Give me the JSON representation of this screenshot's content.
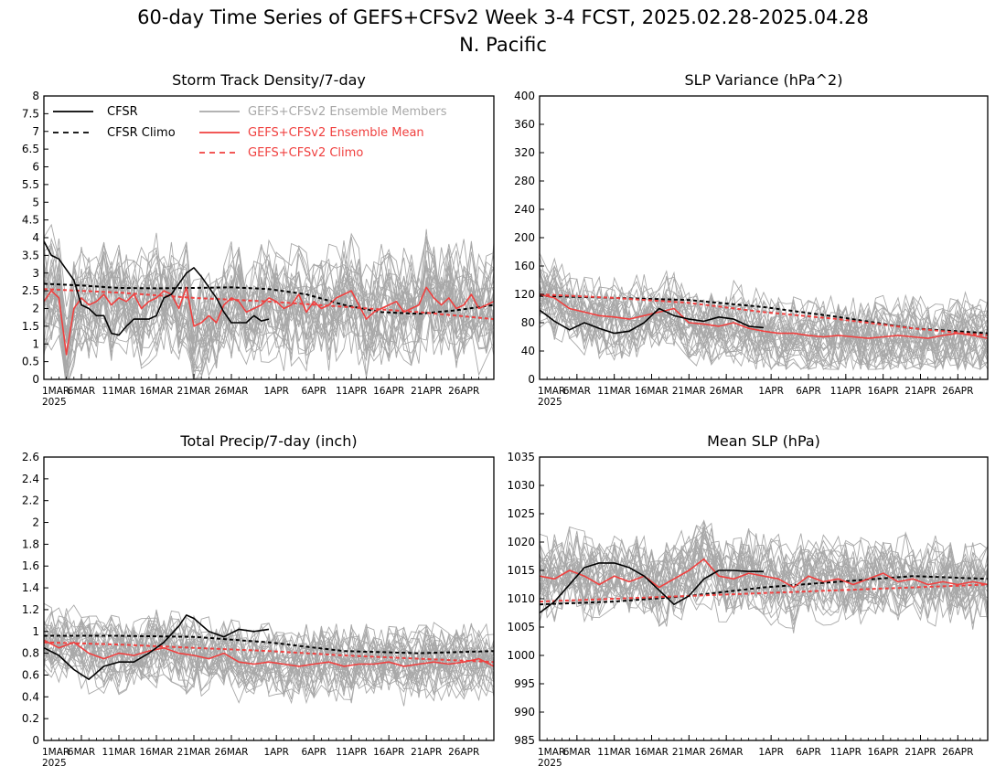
{
  "figure": {
    "title": "60-day Time Series of GEFS+CFSv2 Week 3-4 FCST, 2025.02.28-2025.04.28",
    "subtitle": "N. Pacific"
  },
  "legend": {
    "cfsr": "CFSR",
    "cfsr_climo": "CFSR Climo",
    "members": "GEFS+CFSv2 Ensemble Members",
    "ens_mean": "GEFS+CFSv2 Ensemble Mean",
    "gefs_climo": "GEFS+CFSv2 Climo"
  },
  "colors": {
    "members": "#a8a8a8",
    "cfsr": "#000000",
    "ens_mean": "#f0403f",
    "gefs_climo": "#f0403f",
    "axis": "#000000"
  },
  "x_axis": {
    "tick_labels": [
      "1MAR",
      "6MAR",
      "11MAR",
      "16MAR",
      "21MAR",
      "26MAR",
      "1APR",
      "6APR",
      "11APR",
      "16APR",
      "21APR",
      "26APR"
    ],
    "tick_days": [
      0,
      5,
      10,
      15,
      20,
      25,
      31,
      36,
      41,
      46,
      51,
      56
    ],
    "year_label": "2025",
    "range_days": [
      0,
      60
    ]
  },
  "chart_data": [
    {
      "type": "line",
      "title": "Storm Track Density/7-day",
      "ylim": [
        0,
        8
      ],
      "yticks": [
        "0",
        "0.5",
        "1",
        "1.5",
        "2",
        "2.5",
        "3",
        "3.5",
        "4",
        "4.5",
        "5",
        "5.5",
        "6",
        "6.5",
        "7",
        "7.5",
        "8"
      ],
      "member_band": {
        "low": 0.4,
        "high": 4.6,
        "count": 30
      },
      "series": [
        {
          "name": "CFSR",
          "style": "solid-black",
          "x": [
            0,
            1,
            2,
            3,
            4,
            5,
            6,
            7,
            8,
            9,
            10,
            11,
            12,
            13,
            14,
            15,
            16,
            17,
            18,
            19,
            20,
            21,
            22,
            23,
            24,
            25,
            26,
            27,
            28,
            29,
            30
          ],
          "values": [
            3.9,
            3.5,
            3.4,
            3.1,
            2.8,
            2.1,
            2.0,
            1.8,
            1.8,
            1.3,
            1.25,
            1.5,
            1.7,
            1.7,
            1.7,
            1.8,
            2.3,
            2.4,
            2.7,
            3.0,
            3.15,
            2.9,
            2.6,
            2.3,
            1.9,
            1.6,
            1.6,
            1.6,
            1.8,
            1.65,
            1.7
          ]
        },
        {
          "name": "CFSR Climo",
          "style": "dashed-black",
          "x": [
            0,
            5,
            10,
            15,
            20,
            25,
            30,
            35,
            40,
            45,
            50,
            55,
            60
          ],
          "values": [
            2.7,
            2.65,
            2.58,
            2.57,
            2.58,
            2.6,
            2.55,
            2.4,
            2.1,
            1.9,
            1.85,
            1.95,
            2.1
          ]
        },
        {
          "name": "GEFS+CFSv2 Ensemble Mean",
          "style": "solid-red",
          "x": [
            0,
            1,
            2,
            3,
            4,
            5,
            6,
            7,
            8,
            9,
            10,
            11,
            12,
            13,
            14,
            15,
            16,
            17,
            18,
            19,
            20,
            21,
            22,
            23,
            24,
            25,
            26,
            27,
            28,
            29,
            30,
            31,
            32,
            33,
            34,
            35,
            36,
            37,
            38,
            39,
            40,
            41,
            42,
            43,
            44,
            45,
            46,
            47,
            48,
            49,
            50,
            51,
            52,
            53,
            54,
            55,
            56,
            57,
            58,
            59,
            60
          ],
          "values": [
            2.2,
            2.5,
            2.3,
            0.7,
            2.0,
            2.3,
            2.1,
            2.2,
            2.4,
            2.1,
            2.3,
            2.2,
            2.4,
            2.0,
            2.2,
            2.3,
            2.5,
            2.4,
            2.0,
            2.6,
            1.5,
            1.6,
            1.8,
            1.6,
            2.1,
            2.3,
            2.2,
            1.9,
            2.0,
            2.1,
            2.3,
            2.2,
            2.0,
            2.1,
            2.4,
            1.9,
            2.2,
            2.0,
            2.1,
            2.3,
            2.4,
            2.5,
            2.1,
            1.7,
            1.9,
            2.0,
            2.1,
            2.2,
            1.9,
            2.0,
            2.1,
            2.6,
            2.3,
            2.1,
            2.3,
            2.0,
            2.1,
            2.4,
            2.0,
            2.1,
            2.2
          ]
        },
        {
          "name": "GEFS+CFSv2 Climo",
          "style": "dashed-red",
          "x": [
            0,
            10,
            20,
            30,
            40,
            50,
            60
          ],
          "values": [
            2.55,
            2.45,
            2.3,
            2.2,
            2.05,
            1.9,
            1.7
          ]
        }
      ]
    },
    {
      "type": "line",
      "title": "SLP Variance (hPa^2)",
      "ylim": [
        0,
        400
      ],
      "yticks": [
        "0",
        "40",
        "80",
        "120",
        "160",
        "200",
        "240",
        "280",
        "320",
        "360",
        "400"
      ],
      "member_band": {
        "low": 35,
        "high": 175,
        "count": 30
      },
      "series": [
        {
          "name": "CFSR",
          "style": "solid-black",
          "x": [
            0,
            2,
            4,
            6,
            8,
            10,
            12,
            14,
            16,
            18,
            20,
            22,
            24,
            26,
            28,
            30
          ],
          "values": [
            98,
            82,
            70,
            80,
            72,
            65,
            68,
            80,
            100,
            90,
            85,
            82,
            88,
            85,
            75,
            73
          ]
        },
        {
          "name": "CFSR Climo",
          "style": "dashed-black",
          "x": [
            0,
            10,
            20,
            30,
            40,
            50,
            60
          ],
          "values": [
            118,
            115,
            112,
            102,
            88,
            72,
            65
          ]
        },
        {
          "name": "GEFS+CFSv2 Ensemble Mean",
          "style": "solid-red",
          "x": [
            0,
            2,
            4,
            6,
            8,
            10,
            12,
            14,
            16,
            18,
            20,
            22,
            24,
            26,
            28,
            30,
            32,
            34,
            36,
            38,
            40,
            42,
            44,
            46,
            48,
            50,
            52,
            54,
            56,
            58,
            60
          ],
          "values": [
            120,
            115,
            100,
            95,
            90,
            88,
            85,
            90,
            95,
            100,
            80,
            78,
            75,
            80,
            72,
            68,
            65,
            65,
            62,
            60,
            62,
            60,
            58,
            60,
            62,
            60,
            58,
            62,
            65,
            62,
            58
          ]
        },
        {
          "name": "GEFS+CFSv2 Climo",
          "style": "dashed-red",
          "x": [
            0,
            10,
            20,
            30,
            40,
            50,
            60
          ],
          "values": [
            120,
            115,
            108,
            95,
            85,
            72,
            62
          ]
        }
      ]
    },
    {
      "type": "line",
      "title": "Total Precip/7-day (inch)",
      "ylim": [
        0,
        2.6
      ],
      "yticks": [
        "0",
        "0.2",
        "0.4",
        "0.6",
        "0.8",
        "1",
        "1.2",
        "1.4",
        "1.6",
        "1.8",
        "2",
        "2.2",
        "2.4",
        "2.6"
      ],
      "member_band": {
        "low": 0.35,
        "high": 1.25,
        "count": 30
      },
      "series": [
        {
          "name": "CFSR",
          "style": "solid-black",
          "x": [
            0,
            2,
            4,
            6,
            8,
            10,
            12,
            14,
            16,
            18,
            19,
            20,
            22,
            24,
            26,
            28,
            30
          ],
          "values": [
            0.85,
            0.78,
            0.65,
            0.56,
            0.68,
            0.72,
            0.72,
            0.8,
            0.9,
            1.05,
            1.15,
            1.12,
            1.0,
            0.95,
            1.02,
            1.0,
            1.02
          ]
        },
        {
          "name": "CFSR Climo",
          "style": "dashed-black",
          "x": [
            0,
            10,
            20,
            30,
            40,
            50,
            60
          ],
          "values": [
            0.96,
            0.96,
            0.95,
            0.9,
            0.82,
            0.8,
            0.82
          ]
        },
        {
          "name": "GEFS+CFSv2 Ensemble Mean",
          "style": "solid-red",
          "x": [
            0,
            2,
            4,
            6,
            8,
            10,
            12,
            14,
            16,
            18,
            20,
            22,
            24,
            26,
            28,
            30,
            32,
            34,
            36,
            38,
            40,
            42,
            44,
            46,
            48,
            50,
            52,
            54,
            56,
            58,
            60
          ],
          "values": [
            0.92,
            0.85,
            0.9,
            0.8,
            0.75,
            0.8,
            0.78,
            0.82,
            0.85,
            0.8,
            0.78,
            0.75,
            0.8,
            0.72,
            0.7,
            0.72,
            0.7,
            0.68,
            0.7,
            0.72,
            0.68,
            0.7,
            0.7,
            0.72,
            0.68,
            0.7,
            0.72,
            0.7,
            0.72,
            0.75,
            0.68
          ]
        },
        {
          "name": "GEFS+CFSv2 Climo",
          "style": "dashed-red",
          "x": [
            0,
            10,
            20,
            30,
            40,
            50,
            60
          ],
          "values": [
            0.9,
            0.88,
            0.85,
            0.82,
            0.78,
            0.75,
            0.72
          ]
        }
      ]
    },
    {
      "type": "line",
      "title": "Mean SLP (hPa)",
      "ylim": [
        985,
        1035
      ],
      "yticks": [
        "985",
        "990",
        "995",
        "1000",
        "1005",
        "1010",
        "1015",
        "1020",
        "1025",
        "1030",
        "1035"
      ],
      "member_band": {
        "low": 1003,
        "high": 1022,
        "count": 30
      },
      "series": [
        {
          "name": "CFSR",
          "style": "solid-black",
          "x": [
            0,
            2,
            4,
            6,
            8,
            10,
            12,
            14,
            16,
            18,
            20,
            22,
            24,
            26,
            28,
            30
          ],
          "values": [
            1007.5,
            1009.5,
            1012.5,
            1015.5,
            1016.3,
            1016.3,
            1015.5,
            1014,
            1011.5,
            1009,
            1010.5,
            1013.5,
            1015,
            1015,
            1014.8,
            1014.8
          ]
        },
        {
          "name": "CFSR Climo",
          "style": "dashed-black",
          "x": [
            0,
            10,
            20,
            30,
            40,
            50,
            60
          ],
          "values": [
            1009,
            1009.5,
            1010.5,
            1012,
            1013,
            1014,
            1013.5
          ]
        },
        {
          "name": "GEFS+CFSv2 Ensemble Mean",
          "style": "solid-red",
          "x": [
            0,
            2,
            4,
            6,
            8,
            10,
            12,
            14,
            16,
            18,
            20,
            22,
            24,
            26,
            28,
            30,
            32,
            34,
            36,
            38,
            40,
            42,
            44,
            46,
            48,
            50,
            52,
            54,
            56,
            58,
            60
          ],
          "values": [
            1014,
            1013.5,
            1015,
            1014,
            1012.5,
            1014,
            1013,
            1014,
            1012,
            1013.5,
            1015,
            1017,
            1014,
            1013.5,
            1014.5,
            1014,
            1013.5,
            1012,
            1014,
            1013,
            1013.5,
            1012.5,
            1013.5,
            1014.5,
            1013,
            1013.5,
            1012.5,
            1013,
            1012.5,
            1013,
            1012.5
          ]
        },
        {
          "name": "GEFS+CFSv2 Climo",
          "style": "dashed-red",
          "x": [
            0,
            10,
            20,
            30,
            40,
            50,
            60
          ],
          "values": [
            1009.5,
            1010,
            1010.5,
            1011,
            1011.5,
            1012,
            1012.5
          ]
        }
      ]
    }
  ]
}
